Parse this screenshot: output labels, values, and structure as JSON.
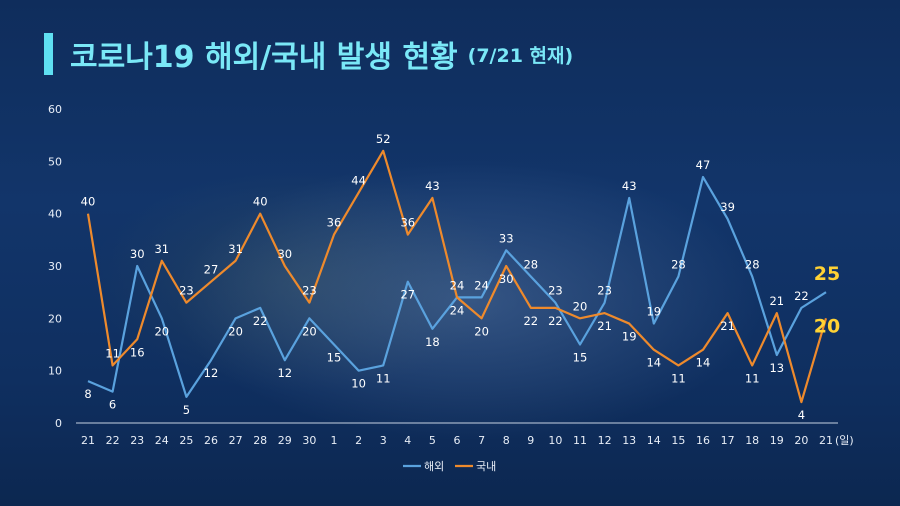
{
  "header": {
    "title": "코로나19 해외/국내 발생 현황",
    "subtitle": "(7/21 현재)"
  },
  "colors": {
    "overseas": "#5aa2de",
    "domestic": "#ee8a2c",
    "title": "#7ae8f7",
    "highlight": "#ffd234"
  },
  "chart_data": {
    "type": "line",
    "x": [
      "21",
      "22",
      "23",
      "24",
      "25",
      "26",
      "27",
      "28",
      "29",
      "30",
      "1",
      "2",
      "3",
      "4",
      "5",
      "6",
      "7",
      "8",
      "9",
      "10",
      "11",
      "12",
      "13",
      "14",
      "15",
      "16",
      "17",
      "18",
      "19",
      "20",
      "21"
    ],
    "x_unit": "(일)",
    "ylim": [
      0,
      60
    ],
    "yticks": [
      0,
      10,
      20,
      30,
      40,
      50,
      60
    ],
    "grid": false,
    "legend": "bottom-center",
    "series": [
      {
        "name": "해외",
        "values": [
          8,
          6,
          30,
          20,
          5,
          12,
          20,
          22,
          12,
          20,
          15,
          10,
          11,
          27,
          18,
          24,
          24,
          33,
          28,
          23,
          15,
          23,
          43,
          19,
          28,
          47,
          39,
          28,
          13,
          22,
          25
        ]
      },
      {
        "name": "국내",
        "values": [
          40,
          11,
          16,
          31,
          23,
          27,
          31,
          40,
          30,
          23,
          36,
          44,
          52,
          36,
          43,
          24,
          20,
          30,
          22,
          22,
          20,
          21,
          19,
          14,
          11,
          14,
          21,
          11,
          21,
          4,
          20
        ]
      }
    ]
  }
}
